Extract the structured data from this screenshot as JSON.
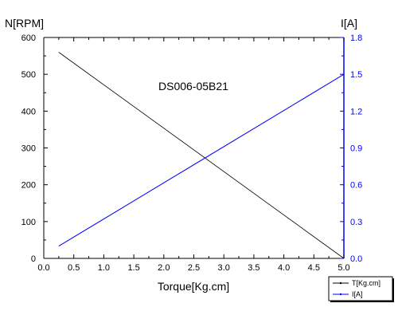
{
  "chart_data": {
    "type": "line",
    "title": "DS006-05B21",
    "xlabel": "Torque[Kg.cm]",
    "ylabel_left": "N[RPM]",
    "ylabel_right": "I[A]",
    "xlim": [
      0.0,
      5.0
    ],
    "ylim_left": [
      0,
      600
    ],
    "ylim_right": [
      0.0,
      1.8
    ],
    "x_ticks": [
      "0.0",
      "0.5",
      "1.0",
      "1.5",
      "2.0",
      "2.5",
      "3.0",
      "3.5",
      "4.0",
      "4.5",
      "5.0"
    ],
    "y_left_ticks": [
      "0",
      "100",
      "200",
      "300",
      "400",
      "500",
      "600"
    ],
    "y_right_ticks": [
      "0.0",
      "0.3",
      "0.6",
      "0.9",
      "1.2",
      "1.5",
      "1.8"
    ],
    "grid": false,
    "legend_position": "bottom-right",
    "series": [
      {
        "name": "T[Kg.cm]",
        "axis": "left",
        "color": "#000000",
        "x": [
          0.25,
          5.0
        ],
        "y": [
          560,
          0
        ]
      },
      {
        "name": "I[A]",
        "axis": "right",
        "color": "#0000ff",
        "x": [
          0.25,
          5.0
        ],
        "y": [
          0.1,
          1.5
        ]
      }
    ],
    "colors": {
      "left_axis": "#000000",
      "right_axis": "#0000ff"
    }
  }
}
